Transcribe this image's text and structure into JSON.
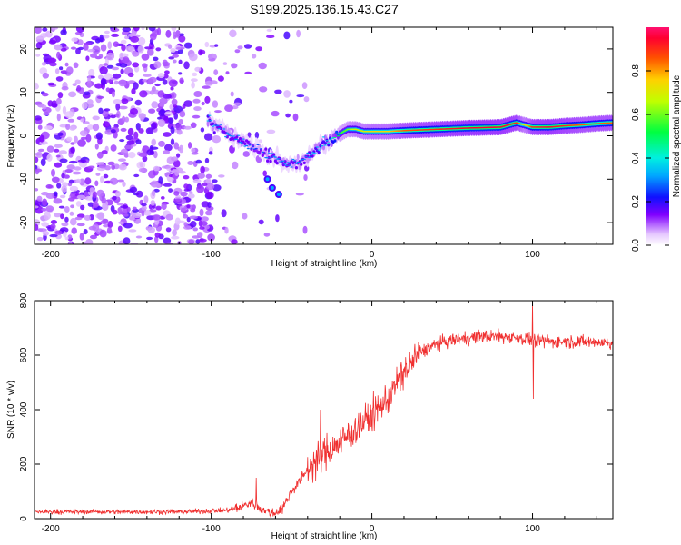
{
  "title": "S199.2025.136.15.43.C27",
  "chart_data": [
    {
      "type": "heatmap",
      "xlabel": "Height of straight line (km)",
      "ylabel": "Frequency (Hz)",
      "xlim": [
        -210,
        150
      ],
      "ylim": [
        -25,
        25
      ],
      "xticks": [
        -200,
        -100,
        0,
        100
      ],
      "yticks": [
        -20,
        -10,
        0,
        10,
        20
      ],
      "colorbar": {
        "label": "Normalized spectral amplitude",
        "range": [
          0,
          1
        ],
        "ticks": [
          "0.0",
          "0.2",
          "0.4",
          "0.6",
          "0.8"
        ],
        "colormap": "rainbow (violet to red)"
      },
      "ridge": {
        "x": [
          -102,
          -95,
          -88,
          -80,
          -72,
          -65,
          -58,
          -52,
          -45,
          -40,
          -35,
          -30,
          -25,
          -20,
          -15,
          -10,
          -5,
          0,
          10,
          20,
          40,
          60,
          80,
          90,
          95,
          100,
          110,
          120,
          130,
          140,
          150
        ],
        "y": [
          3.5,
          2,
          0,
          -1.5,
          -3,
          -4.5,
          -5.5,
          -6.5,
          -6,
          -5,
          -3,
          -2,
          -1,
          0.5,
          1.5,
          1.5,
          1,
          1,
          1,
          1.2,
          1.5,
          1.8,
          2,
          3,
          2.5,
          2,
          2,
          2.3,
          2.5,
          2.8,
          3
        ],
        "amplitude": [
          0.35,
          0.3,
          0.3,
          0.3,
          0.25,
          0.3,
          0.3,
          0.3,
          0.3,
          0.3,
          0.35,
          0.35,
          0.4,
          0.55,
          0.6,
          0.7,
          0.7,
          0.75,
          0.75,
          0.85,
          0.9,
          0.95,
          0.95,
          0.9,
          0.7,
          0.9,
          0.95,
          0.9,
          0.85,
          0.85,
          0.85
        ]
      },
      "background_noise": "scattered low-amplitude violet speckle, dense for heights below about -100 km"
    },
    {
      "type": "line",
      "xlabel": "Height of straight line (km)",
      "ylabel": "SNR (10 * v/v)",
      "xlim": [
        -210,
        150
      ],
      "ylim": [
        0,
        800
      ],
      "xticks": [
        -200,
        -100,
        0,
        100
      ],
      "yticks": [
        0,
        200,
        400,
        600,
        800
      ],
      "color": "#f03030",
      "trend": {
        "x": [
          -210,
          -120,
          -90,
          -80,
          -75,
          -70,
          -65,
          -60,
          -55,
          -50,
          -40,
          -30,
          -20,
          -10,
          0,
          10,
          20,
          30,
          40,
          50,
          70,
          90,
          100,
          110,
          130,
          150
        ],
        "y": [
          25,
          25,
          30,
          45,
          60,
          40,
          25,
          20,
          45,
          100,
          180,
          240,
          280,
          330,
          380,
          440,
          540,
          610,
          640,
          655,
          670,
          665,
          655,
          650,
          650,
          645
        ]
      },
      "spikes": [
        {
          "x": -72,
          "y": 150
        },
        {
          "x": -32,
          "y": 400
        },
        {
          "x": 100,
          "y": 800
        },
        {
          "x": 100.5,
          "y": 440
        }
      ]
    }
  ]
}
